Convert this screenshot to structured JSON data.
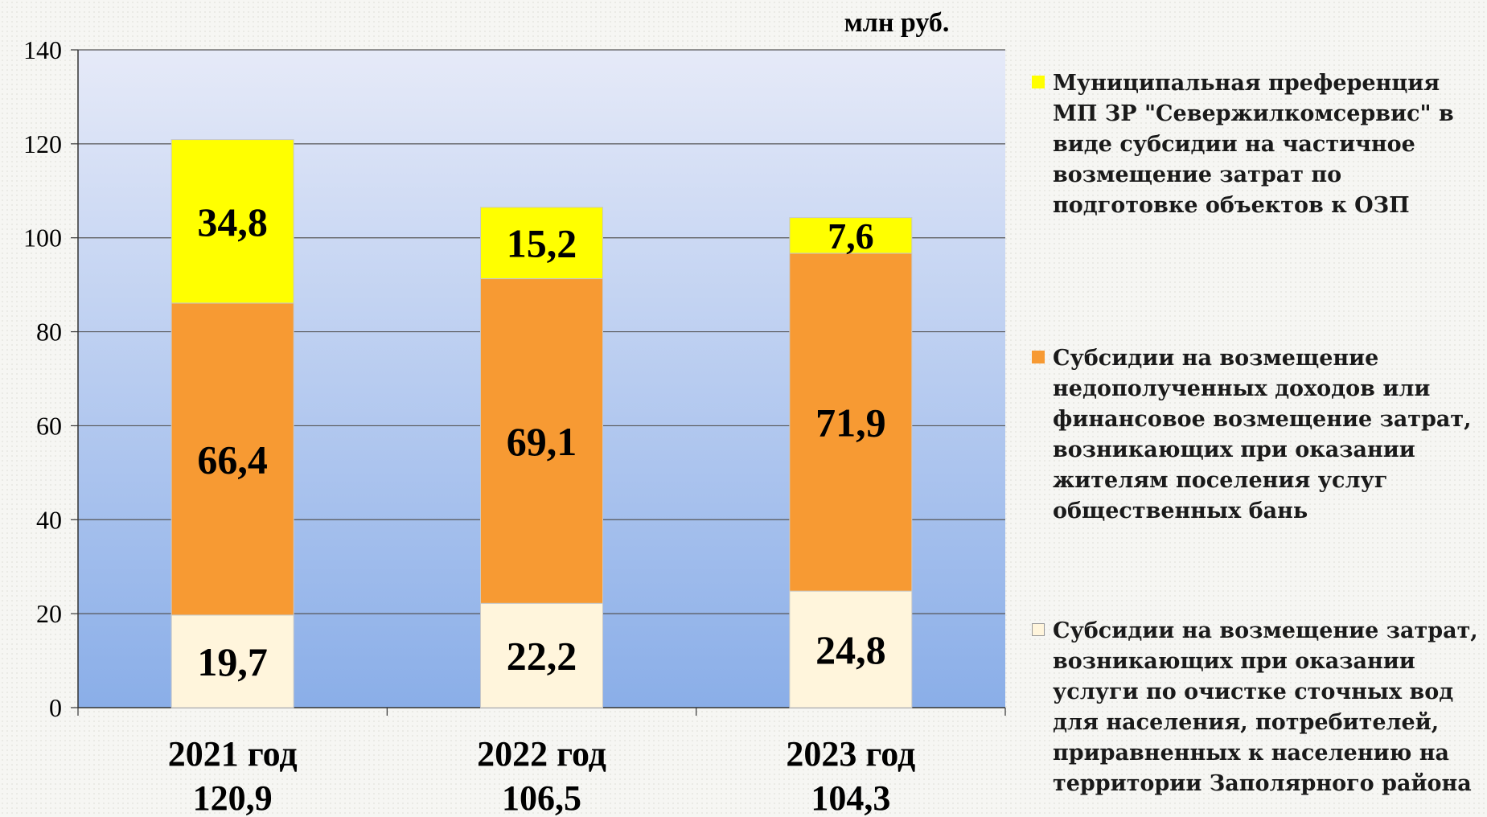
{
  "chart_data": {
    "type": "bar",
    "stacked": true,
    "unit_label": "млн руб.",
    "ylim": [
      0,
      140
    ],
    "y_ticks": [
      "0",
      "20",
      "40",
      "60",
      "80",
      "100",
      "120",
      "140"
    ],
    "grid": true,
    "legend_position": "right",
    "categories": [
      "2021 год",
      "2022 год",
      "2023 год"
    ],
    "category_totals": [
      "120,9",
      "106,5",
      "104,3"
    ],
    "series": [
      {
        "name": "Субсидии на возмещение затрат, возникающих  при оказании услуги по очистке сточных вод для населения, потребителей, приравненных к населению на территории Заполярного района",
        "values": [
          19.7,
          22.2,
          24.8
        ],
        "labels": [
          "19,7",
          "22,2",
          "24,8"
        ],
        "color": "#fff5dc"
      },
      {
        "name": "Субсидии на возмещение недополученных доходов или финансовое возмещение затрат, возникающих при оказании жителям поселения услуг общественных бань",
        "values": [
          66.4,
          69.1,
          71.9
        ],
        "labels": [
          "66,4",
          "69,1",
          "71,9"
        ],
        "color": "#f79a33"
      },
      {
        "name": "Муниципальная преференция МП ЗР \"Севержилкомсервис\" в виде субсидии на частичное возмещение затрат по подготовке объектов к ОЗП",
        "values": [
          34.8,
          15.2,
          7.6
        ],
        "labels": [
          "34,8",
          "15,2",
          "7,6"
        ],
        "color": "#ffff00"
      }
    ]
  }
}
